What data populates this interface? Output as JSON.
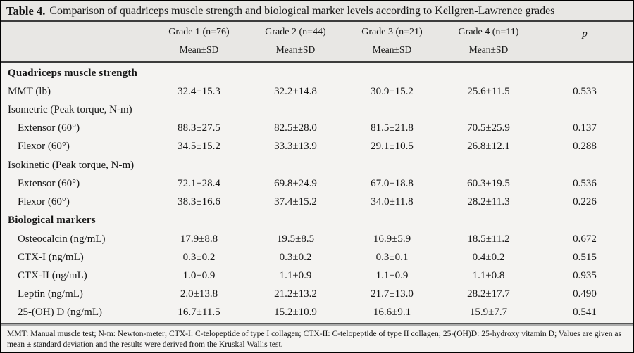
{
  "table": {
    "label": "Table 4.",
    "title": "Comparison of quadriceps muscle strength and biological marker levels according to Kellgren-Lawrence grades",
    "columns": [
      {
        "group": "Grade 1 (n=76)",
        "sub": "Mean±SD"
      },
      {
        "group": "Grade 2 (n=44)",
        "sub": "Mean±SD"
      },
      {
        "group": "Grade 3 (n=21)",
        "sub": "Mean±SD"
      },
      {
        "group": "Grade 4 (n=11)",
        "sub": "Mean±SD"
      }
    ],
    "p_label": "p",
    "rows": [
      {
        "type": "section",
        "indent": 0,
        "label": "Quadriceps muscle strength"
      },
      {
        "type": "data",
        "indent": 0,
        "label": "MMT (lb)",
        "values": [
          "32.4±15.3",
          "32.2±14.8",
          "30.9±15.2",
          "25.6±11.5"
        ],
        "p": "0.533"
      },
      {
        "type": "group",
        "indent": 0,
        "label": "Isometric (Peak torque, N-m)"
      },
      {
        "type": "data",
        "indent": 1,
        "label": "Extensor (60°)",
        "values": [
          "88.3±27.5",
          "82.5±28.0",
          "81.5±21.8",
          "70.5±25.9"
        ],
        "p": "0.137"
      },
      {
        "type": "data",
        "indent": 1,
        "label": "Flexor (60°)",
        "values": [
          "34.5±15.2",
          "33.3±13.9",
          "29.1±10.5",
          "26.8±12.1"
        ],
        "p": "0.288"
      },
      {
        "type": "group",
        "indent": 0,
        "label": "Isokinetic (Peak torque, N-m)"
      },
      {
        "type": "data",
        "indent": 1,
        "label": "Extensor (60°)",
        "values": [
          "72.1±28.4",
          "69.8±24.9",
          "67.0±18.8",
          "60.3±19.5"
        ],
        "p": "0.536"
      },
      {
        "type": "data",
        "indent": 1,
        "label": "Flexor (60°)",
        "values": [
          "38.3±16.6",
          "37.4±15.2",
          "34.0±11.8",
          "28.2±11.3"
        ],
        "p": "0.226"
      },
      {
        "type": "section",
        "indent": 0,
        "label": "Biological markers"
      },
      {
        "type": "data",
        "indent": 1,
        "label": "Osteocalcin (ng/mL)",
        "values": [
          "17.9±8.8",
          "19.5±8.5",
          "16.9±5.9",
          "18.5±11.2"
        ],
        "p": "0.672"
      },
      {
        "type": "data",
        "indent": 1,
        "label": "CTX-I (ng/mL)",
        "values": [
          "0.3±0.2",
          "0.3±0.2",
          "0.3±0.1",
          "0.4±0.2"
        ],
        "p": "0.515"
      },
      {
        "type": "data",
        "indent": 1,
        "label": "CTX-II (ng/mL)",
        "values": [
          "1.0±0.9",
          "1.1±0.9",
          "1.1±0.9",
          "1.1±0.8"
        ],
        "p": "0.935"
      },
      {
        "type": "data",
        "indent": 1,
        "label": "Leptin (ng/mL)",
        "values": [
          "2.0±13.8",
          "21.2±13.2",
          "21.7±13.0",
          "28.2±17.7"
        ],
        "p": "0.490"
      },
      {
        "type": "data",
        "indent": 1,
        "label": "25-(OH) D (ng/mL)",
        "values": [
          "16.7±11.5",
          "15.2±10.9",
          "16.6±9.1",
          "15.9±7.7"
        ],
        "p": "0.541"
      }
    ],
    "footnote": "MMT: Manual muscle test; N-m: Newton-meter; CTX-I: C-telopeptide of type I collagen; CTX-II: C-telopeptide of type II collagen; 25-(OH)D: 25-hydroxy vitamin D; Values are given as mean ± standard deviation and the results were derived from the Kruskal Wallis test."
  },
  "colors": {
    "band_bg": "#e8e7e4",
    "body_bg": "#f4f3f1",
    "border_color": "#000000",
    "rule_dark": "#3c3c3c",
    "rule_gray": "#ababab",
    "text_color": "#161616"
  }
}
